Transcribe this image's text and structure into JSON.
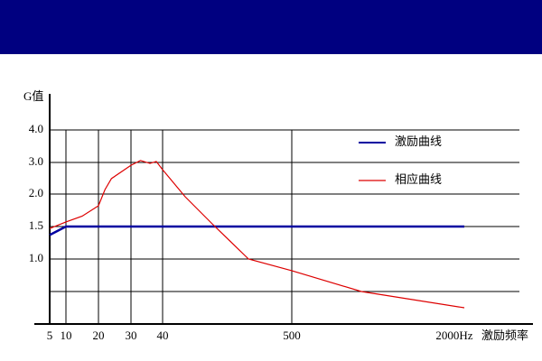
{
  "chart_data": {
    "type": "line",
    "y_label": "G值",
    "x_label": "激励频率",
    "xticks": [
      5,
      10,
      20,
      30,
      40,
      500,
      {
        "value": 2000,
        "label": "2000Hz"
      }
    ],
    "yticks": [
      {
        "value": 0.5,
        "label": null
      },
      {
        "value": 1.0,
        "label": "1.0"
      },
      {
        "value": 1.5,
        "label": "1.5"
      },
      {
        "value": 2.0,
        "label": "2.0"
      },
      {
        "value": 3.0,
        "label": "3.0"
      },
      {
        "value": 4.0,
        "label": "4.0"
      }
    ],
    "ylim": [
      0,
      5
    ],
    "grid": true,
    "series": [
      {
        "name": "激励曲线",
        "color": "#0000a0",
        "x": [
          5,
          10,
          2000
        ],
        "values": [
          1.37,
          1.5,
          1.5
        ]
      },
      {
        "name": "相应曲线",
        "color": "#dd0000",
        "x": [
          5,
          10,
          15,
          20,
          22,
          24,
          30,
          33,
          36,
          38,
          40,
          120,
          217,
          346,
          500,
          1105,
          2000
        ],
        "values": [
          1.47,
          1.57,
          1.66,
          1.82,
          2.14,
          2.49,
          2.91,
          3.06,
          2.97,
          3.03,
          2.77,
          1.96,
          1.54,
          1.0,
          0.82,
          0.5,
          0.25
        ]
      }
    ]
  }
}
